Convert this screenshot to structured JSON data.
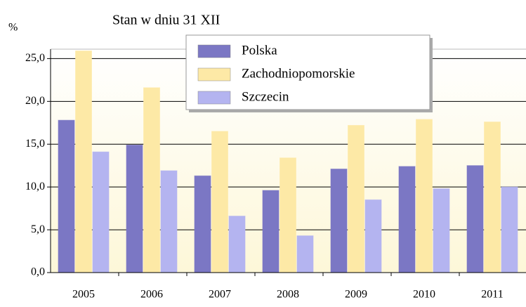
{
  "chart_data": {
    "type": "bar",
    "title": "Stan w dniu 31 XII",
    "y_label": "%",
    "categories": [
      "2005",
      "2006",
      "2007",
      "2008",
      "2009",
      "2010",
      "2011"
    ],
    "series": [
      {
        "name": "Polska",
        "color": "#7b77c4",
        "values": [
          17.8,
          14.9,
          11.3,
          9.6,
          12.1,
          12.4,
          12.5
        ]
      },
      {
        "name": "Zachodniopomorskie",
        "color": "#fde9a6",
        "values": [
          25.9,
          21.6,
          16.5,
          13.4,
          17.2,
          17.9,
          17.6
        ]
      },
      {
        "name": "Szczecin",
        "color": "#b4b4f0",
        "values": [
          14.1,
          11.9,
          6.6,
          4.3,
          8.5,
          9.8,
          10.0
        ]
      }
    ],
    "ylim": [
      0,
      26.1
    ],
    "yticks": [
      {
        "value": 0,
        "label": "0,0"
      },
      {
        "value": 5,
        "label": "5,0"
      },
      {
        "value": 10,
        "label": "10,0"
      },
      {
        "value": 15,
        "label": "15,0"
      },
      {
        "value": 20,
        "label": "20,0"
      },
      {
        "value": 25,
        "label": "25,0"
      }
    ],
    "grid": true,
    "legend": "top"
  }
}
